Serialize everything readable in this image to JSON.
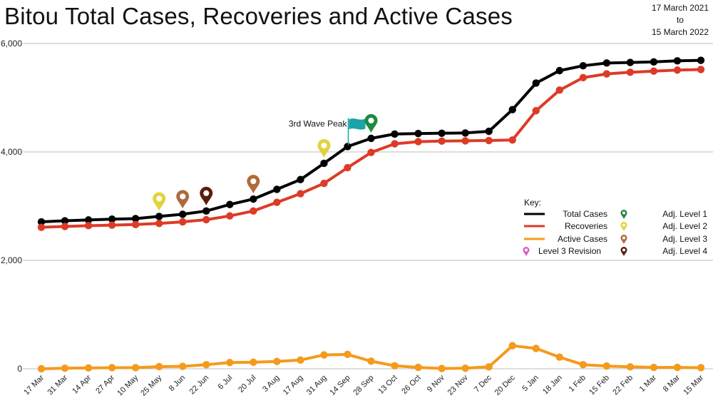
{
  "title": "Bitou Total Cases, Recoveries and Active Cases",
  "date_range": {
    "from": "17 March 2021",
    "to_word": "to",
    "to": "15 March 2022"
  },
  "colors": {
    "total": "#000000",
    "recoveries": "#dd3b26",
    "active": "#f59a1c",
    "level1": "#1e8a3e",
    "level2": "#e3d33b",
    "level3": "#b06a3b",
    "level4": "#5a1e0e",
    "revision": "#dd5fc8",
    "flag": "#1aa3a8",
    "grid": "#bdbdbd"
  },
  "annotations": {
    "wave_peak": "3rd Wave Peak"
  },
  "key": {
    "title": "Key:",
    "series_entries": [
      "Total Cases",
      "Recoveries",
      "Active Cases"
    ],
    "revision_label": "Level 3 Revision",
    "level_entries": [
      "Adj. Level 1",
      "Adj. Level 2",
      "Adj. Level 3",
      "Adj. Level 4"
    ]
  },
  "chart_data": {
    "type": "line",
    "title": "Bitou Total Cases, Recoveries and Active Cases",
    "xlabel": "",
    "ylabel": "",
    "categories": [
      "17 Mar",
      "31 Mar",
      "14 Apr",
      "27 Apr",
      "10 May",
      "25 May",
      "8 Jun",
      "22 Jun",
      "6 Jul",
      "20 Jul",
      "3 Aug",
      "17 Aug",
      "31 Aug",
      "14 Sep",
      "28 Sep",
      "13 Oct",
      "26 Oct",
      "9 Nov",
      "23 Nov",
      "7 Dec",
      "20 Dec",
      "5 Jan",
      "18 Jan",
      "1 Feb",
      "15 Feb",
      "22 Feb",
      "1 Mar",
      "8 Mar",
      "15 Mar"
    ],
    "ylim": [
      0,
      6000
    ],
    "yticks": [
      0,
      2000,
      4000,
      6000
    ],
    "ytick_labels": [
      "0",
      "2,000",
      "4,000",
      "6,000"
    ],
    "grid": true,
    "legend_position": "right",
    "series": [
      {
        "name": "Total Cases",
        "values": [
          2710,
          2730,
          2745,
          2760,
          2770,
          2810,
          2850,
          2910,
          3030,
          3130,
          3310,
          3490,
          3790,
          4100,
          4250,
          4330,
          4340,
          4345,
          4350,
          4380,
          4780,
          5270,
          5500,
          5590,
          5640,
          5650,
          5660,
          5680,
          5690
        ]
      },
      {
        "name": "Recoveries",
        "values": [
          2610,
          2625,
          2640,
          2650,
          2660,
          2680,
          2710,
          2750,
          2820,
          2910,
          3070,
          3230,
          3420,
          3710,
          3990,
          4150,
          4190,
          4200,
          4205,
          4210,
          4220,
          4760,
          5140,
          5370,
          5440,
          5470,
          5490,
          5510,
          5520
        ]
      },
      {
        "name": "Active Cases",
        "values": [
          0,
          10,
          15,
          20,
          20,
          40,
          45,
          75,
          115,
          120,
          135,
          160,
          255,
          265,
          140,
          55,
          25,
          5,
          10,
          35,
          425,
          375,
          215,
          75,
          50,
          35,
          25,
          25,
          20
        ]
      }
    ],
    "markers": [
      {
        "kind": "Adj. Level 2",
        "x": "25 May",
        "y": 2810
      },
      {
        "kind": "Adj. Level 3",
        "x": "8 Jun",
        "y": 2850
      },
      {
        "kind": "Adj. Level 4",
        "x": "22 Jun",
        "y": 2910
      },
      {
        "kind": "Adj. Level 3",
        "x": "20 Jul",
        "y": 3130
      },
      {
        "kind": "Adj. Level 2",
        "x": "31 Aug",
        "y": 3790
      },
      {
        "kind": "3rd Wave Peak",
        "x": "14 Sep",
        "y": 4100
      },
      {
        "kind": "Adj. Level 1",
        "x": "28 Sep",
        "y": 4250
      }
    ]
  }
}
